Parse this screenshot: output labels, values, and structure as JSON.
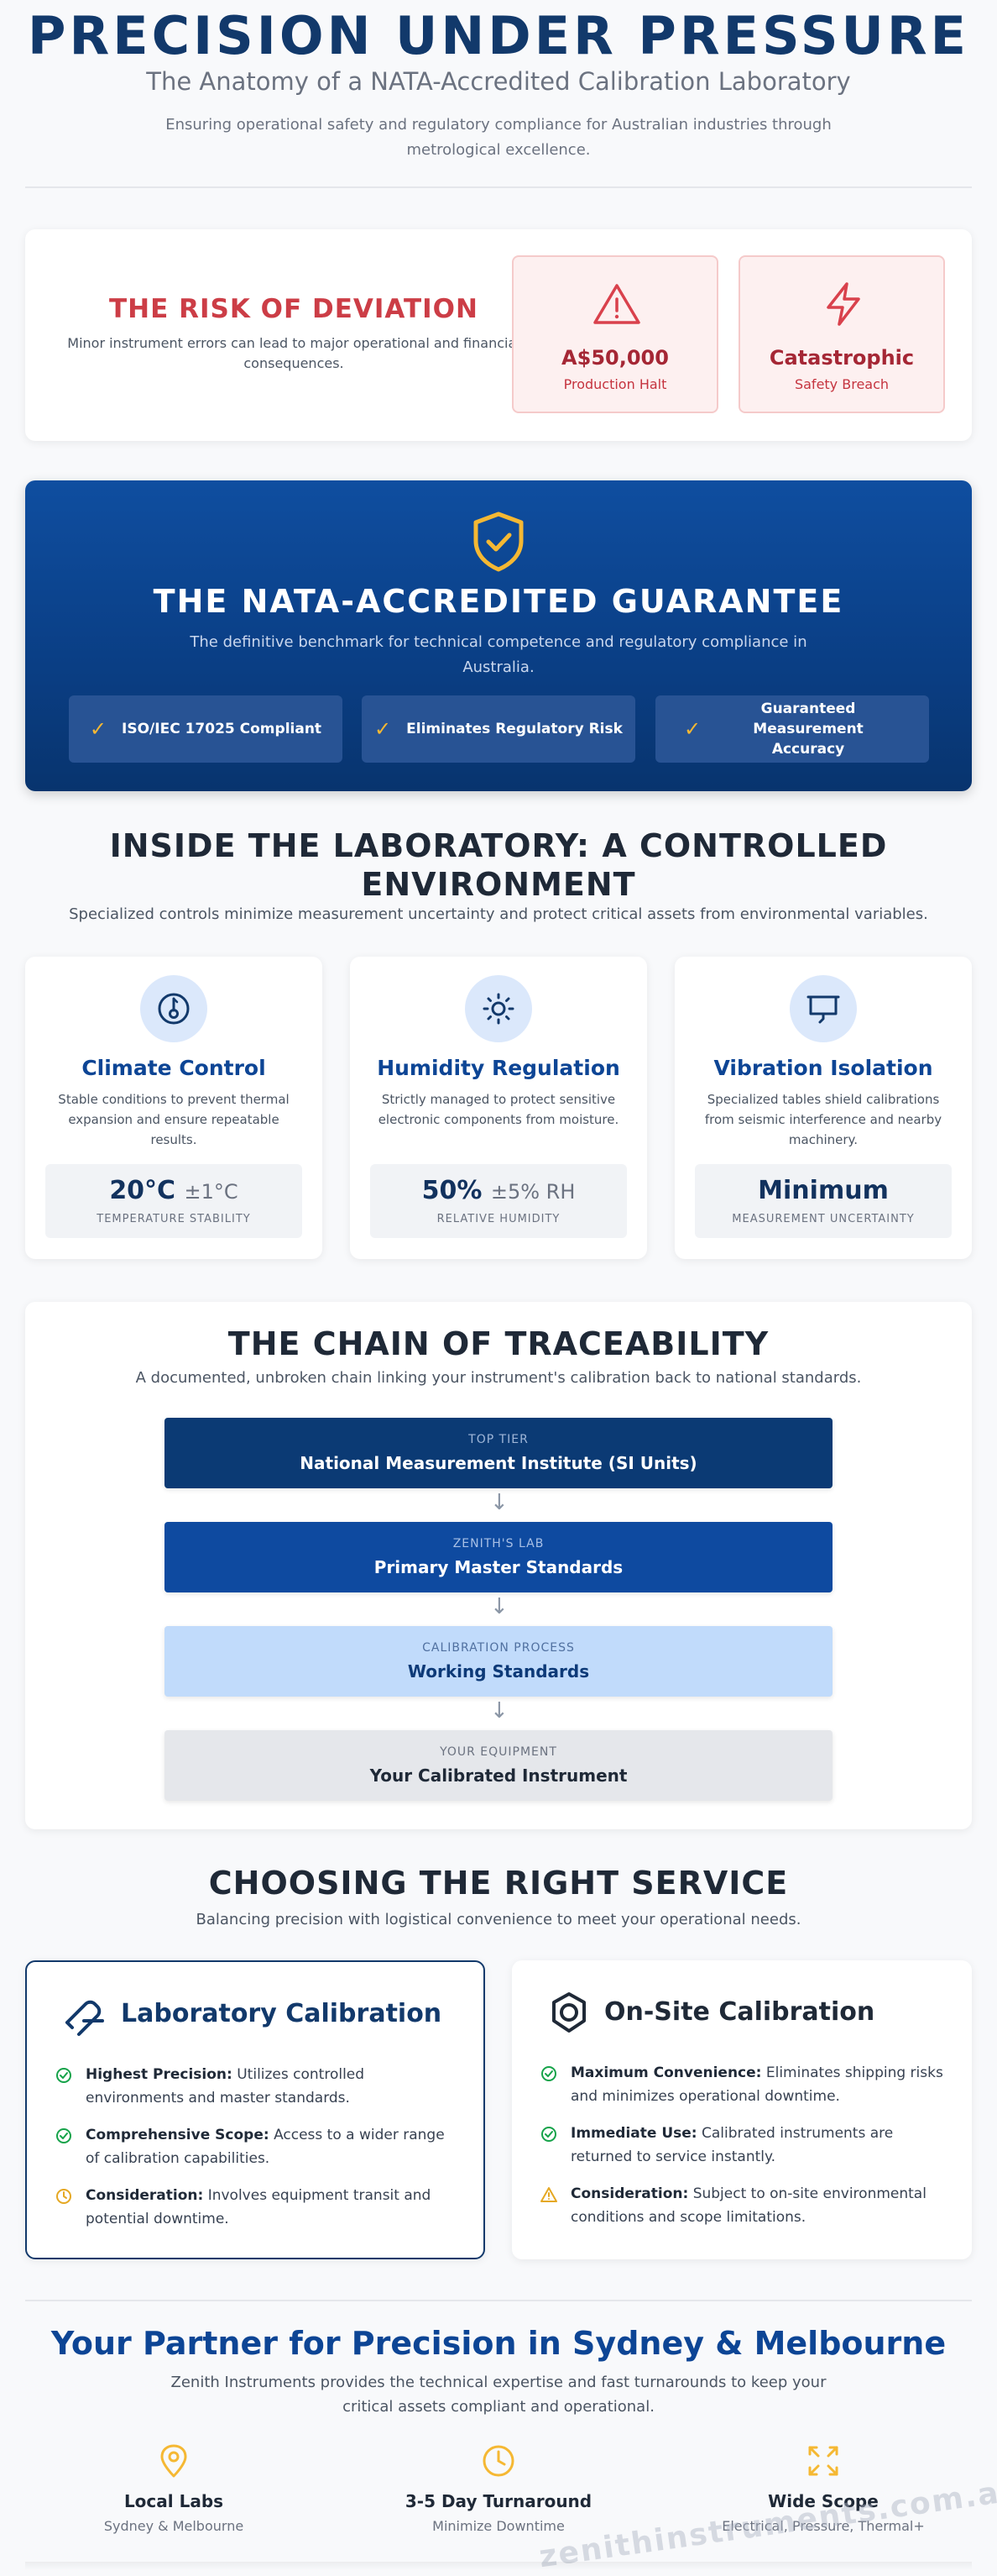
{
  "hero": {
    "title": "PRECISION UNDER PRESSURE",
    "subtitle": "The Anatomy of a NATA-Accredited Calibration Laboratory",
    "description": "Ensuring operational safety and regulatory compliance for Australian industries through metrological excellence."
  },
  "risk": {
    "title": "THE RISK OF DEVIATION",
    "description": "Minor instrument errors can lead to major operational and financial consequences.",
    "cards": [
      {
        "icon": "warning-triangle-icon",
        "value": "A$50,000",
        "label": "Production Halt"
      },
      {
        "icon": "lightning-bolt-icon",
        "value": "Catastrophic",
        "label": "Safety Breach"
      }
    ]
  },
  "guarantee": {
    "title": "THE NATA-ACCREDITED GUARANTEE",
    "description": "The definitive benchmark for technical competence and regulatory compliance in Australia.",
    "items": [
      "ISO/IEC 17025 Compliant",
      "Eliminates Regulatory Risk",
      "Guaranteed Measurement Accuracy"
    ]
  },
  "lab": {
    "title": "INSIDE THE LABORATORY: A CONTROLLED ENVIRONMENT",
    "description": "Specialized controls minimize measurement uncertainty and protect critical assets from environmental variables.",
    "cards": [
      {
        "icon": "thermometer-icon",
        "title": "Climate Control",
        "description": "Stable conditions to prevent thermal expansion and ensure repeatable results.",
        "value": "20°C",
        "tolerance": "±1°C",
        "label": "TEMPERATURE STABILITY"
      },
      {
        "icon": "sun-icon",
        "title": "Humidity Regulation",
        "description": "Strictly managed to protect sensitive electronic components from moisture.",
        "value": "50%",
        "tolerance": "±5% RH",
        "label": "RELATIVE HUMIDITY"
      },
      {
        "icon": "presentation-board-icon",
        "title": "Vibration Isolation",
        "description": "Specialized tables shield calibrations from seismic interference and nearby machinery.",
        "value": "Minimum",
        "tolerance": "",
        "label": "MEASUREMENT UNCERTAINTY"
      }
    ]
  },
  "trace": {
    "title": "THE CHAIN OF TRACEABILITY",
    "description": "A documented, unbroken chain linking your instrument's calibration back to national standards.",
    "tiers": [
      {
        "small": "TOP TIER",
        "big": "National Measurement Institute (SI Units)"
      },
      {
        "small": "ZENITH'S LAB",
        "big": "Primary Master Standards"
      },
      {
        "small": "CALIBRATION PROCESS",
        "big": "Working Standards"
      },
      {
        "small": "YOUR EQUIPMENT",
        "big": "Your Calibrated Instrument"
      }
    ]
  },
  "service": {
    "title": "CHOOSING THE RIGHT SERVICE",
    "description": "Balancing precision with logistical convenience to meet your operational needs.",
    "lab": {
      "title": "Laboratory Calibration",
      "items": [
        {
          "bold": "Highest Precision:",
          "text": " Utilizes controlled environments and master standards."
        },
        {
          "bold": "Comprehensive Scope:",
          "text": " Access to a wider range of calibration capabilities."
        },
        {
          "bold": "Consideration:",
          "text": " Involves equipment transit and potential downtime."
        }
      ]
    },
    "onsite": {
      "title": "On-Site Calibration",
      "items": [
        {
          "bold": "Maximum Convenience:",
          "text": " Eliminates shipping risks and minimizes operational downtime."
        },
        {
          "bold": "Immediate Use:",
          "text": " Calibrated instruments are returned to service instantly."
        },
        {
          "bold": "Consideration:",
          "text": " Subject to on-site environmental conditions and scope limitations."
        }
      ]
    }
  },
  "partner": {
    "title": "Your Partner for Precision in Sydney & Melbourne",
    "description": "Zenith Instruments provides the technical expertise and fast turnarounds to keep your critical assets compliant and operational.",
    "features": [
      {
        "icon": "map-pin-icon",
        "title": "Local Labs",
        "subtitle": "Sydney & Melbourne"
      },
      {
        "icon": "clock-icon",
        "title": "3-5 Day Turnaround",
        "subtitle": "Minimize Downtime"
      },
      {
        "icon": "expand-arrows-icon",
        "title": "Wide Scope",
        "subtitle": "Electrical, Pressure, Thermal+"
      }
    ]
  },
  "watermark": "zenithinstruments.com.au",
  "colors": {
    "navy": "#12396b",
    "brand_blue": "#0d4595",
    "risk_red": "#cc3d46",
    "accent_gold": "#f5b833",
    "check_green": "#16a34a"
  }
}
